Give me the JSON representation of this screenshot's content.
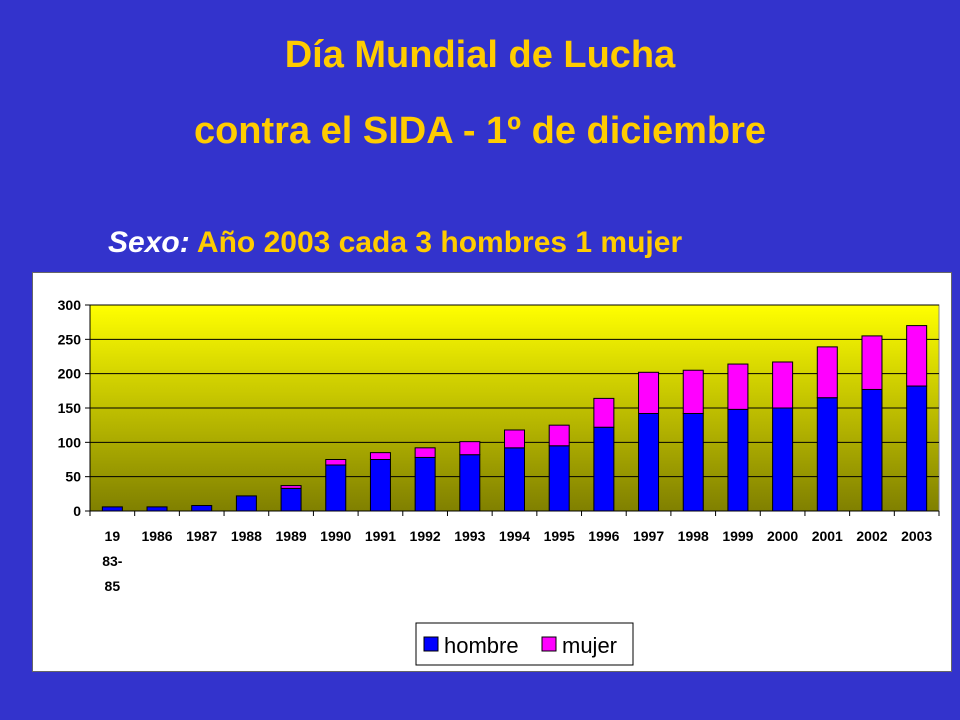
{
  "slide": {
    "title_line1": "Día Mundial  de Lucha",
    "title_line2": "contra el SIDA - 1º de diciembre",
    "subtitle_lead": "Sexo:",
    "subtitle_rest": " Año 2003 cada 3 hombres 1 mujer"
  },
  "colors": {
    "background": "#3333cc",
    "title": "#ffcc00",
    "hombre": "#0000ff",
    "mujer": "#ff00ff",
    "plot_top": "#ffff00",
    "plot_bottom": "#808000"
  },
  "chart_data": {
    "type": "bar",
    "stacked": true,
    "categories": [
      "19 83- 85",
      "1986",
      "1987",
      "1988",
      "1989",
      "1990",
      "1991",
      "1992",
      "1993",
      "1994",
      "1995",
      "1996",
      "1997",
      "1998",
      "1999",
      "2000",
      "2001",
      "2002",
      "2003"
    ],
    "category_lines": [
      [
        "19",
        "83-",
        "85"
      ],
      [
        "1986"
      ],
      [
        "1987"
      ],
      [
        "1988"
      ],
      [
        "1989"
      ],
      [
        "1990"
      ],
      [
        "1991"
      ],
      [
        "1992"
      ],
      [
        "1993"
      ],
      [
        "1994"
      ],
      [
        "1995"
      ],
      [
        "1996"
      ],
      [
        "1997"
      ],
      [
        "1998"
      ],
      [
        "1999"
      ],
      [
        "2000"
      ],
      [
        "2001"
      ],
      [
        "2002"
      ],
      [
        "2003"
      ]
    ],
    "series": [
      {
        "name": "hombre",
        "values": [
          6,
          6,
          8,
          22,
          33,
          67,
          75,
          78,
          82,
          92,
          95,
          122,
          142,
          142,
          148,
          150,
          165,
          177,
          182
        ]
      },
      {
        "name": "mujer",
        "values": [
          0,
          0,
          0,
          0,
          4,
          8,
          10,
          14,
          19,
          26,
          30,
          42,
          60,
          63,
          66,
          67,
          74,
          78,
          88
        ]
      }
    ],
    "ylim": [
      0,
      300
    ],
    "yticks": [
      0,
      50,
      100,
      150,
      200,
      250,
      300
    ],
    "grid": true,
    "legend": "bottom"
  }
}
